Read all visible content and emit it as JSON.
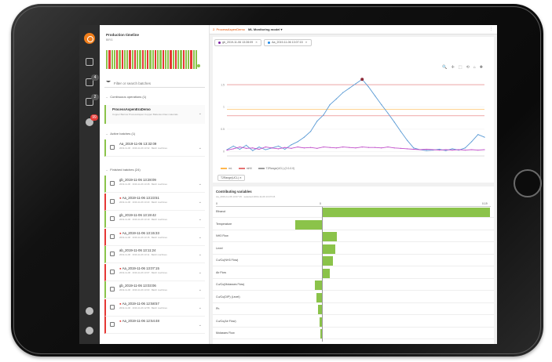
{
  "rail": {
    "badges": [
      "4",
      "2",
      "99"
    ]
  },
  "panel": {
    "title": "Production timeline",
    "subtitle": "BIRG",
    "timeline_colors": [
      "#8bc34a",
      "#e53935",
      "#8bc34a",
      "#8bc34a",
      "#e53935",
      "#8bc34a",
      "#e53935",
      "#8bc34a",
      "#8bc34a",
      "#e53935",
      "#8bc34a",
      "#e53935",
      "#8bc34a",
      "#8bc34a",
      "#e53935",
      "#8bc34a",
      "#e53935",
      "#8bc34a",
      "#8bc34a",
      "#e53935",
      "#8bc34a",
      "#8bc34a",
      "#e53935",
      "#8bc34a",
      "#8bc34a",
      "#e53935",
      "#8bc34a",
      "#e53935",
      "#8bc34a",
      "#8bc34a",
      "#e53935",
      "#8bc34a",
      "#8bc34a",
      "#e53935",
      "#8bc34a",
      "#8bc34a"
    ],
    "filter_placeholder": "Filter or search batches",
    "continuous_header": "Continuous operations (1)",
    "operation": {
      "title": "ProcessAspenEraDemo",
      "desc": "Copper Barrow ProcessAspen Copper Batteries Raw materials"
    },
    "active_header": "Active batches (1)",
    "finished_header": "Finished batches (24)"
  },
  "active_batches": [
    {
      "name": "Aa_2019-11-06 13:32:09",
      "meta": "2019-11-06 · 2019-11-06 13:32 · Batch machines",
      "status": "green",
      "warn": false
    }
  ],
  "finished_batches": [
    {
      "name": "gb_2019-11-06 13:28:09",
      "meta": "2019-11-06 · 2019-11-06 13:28 · Batch machines",
      "status": "green",
      "warn": false
    },
    {
      "name": "Aa_2019-11-06 13:23:51",
      "meta": "2019-11-06 · 2019-11-06 13:23 · Batch machines",
      "status": "red",
      "warn": true
    },
    {
      "name": "gb_2019-11-06 13:19:42",
      "meta": "2019-11-06 · 2019-11-06 13:19 · Batch machines",
      "status": "green",
      "warn": false
    },
    {
      "name": "Aa_2019-11-06 13:15:33",
      "meta": "2019-11-06 · 2019-11-06 13:15 · Batch machines",
      "status": "red",
      "warn": true
    },
    {
      "name": "ab_2019-11-06 13:11:24",
      "meta": "2019-11-06 · 2019-11-06 13:11 · Batch machines",
      "status": "green",
      "warn": false
    },
    {
      "name": "Aa_2019-11-06 13:07:15",
      "meta": "2019-11-06 · 2019-11-06 13:07 · Batch machines",
      "status": "red",
      "warn": true
    },
    {
      "name": "gb_2019-11-06 13:03:06",
      "meta": "2019-11-06 · 2019-11-06 13:03 · Batch machines",
      "status": "green",
      "warn": false
    },
    {
      "name": "Aa_2019-11-06 12:58:57",
      "meta": "2019-11-06 · 2019-11-06 12:58 · Batch machines",
      "status": "red",
      "warn": true
    },
    {
      "name": "Aa_2019-11-06 12:54:48",
      "meta": "",
      "status": "red",
      "warn": true
    }
  ],
  "main": {
    "breadcrumb_1": "2. ProcessAspenDemo",
    "breadcrumb_2": "ML Monitoring model ▾",
    "kebab": "⋮"
  },
  "chips": [
    {
      "label": "gb_2019-11-06 13:28:09",
      "color": "#7b1fa2"
    },
    {
      "label": "Aa_2019-11-06 13:07:15",
      "color": "#1e88e5"
    }
  ],
  "tool_icons": [
    "🔍",
    "✛",
    "⬚",
    "⟲",
    "⌂",
    "✚"
  ],
  "chart_data": {
    "type": "line",
    "title": "",
    "xlabel": "",
    "ylabel": "",
    "ylim": [
      -0.1,
      1.8
    ],
    "yticks": [
      "0",
      "0.5",
      "1",
      "1.5"
    ],
    "x": [
      0,
      1,
      2,
      3,
      4,
      5,
      6,
      7,
      8,
      9,
      10,
      11,
      12,
      13,
      14,
      15,
      16,
      17,
      18,
      19,
      20,
      21,
      22,
      23,
      24,
      25,
      26,
      27,
      28,
      29,
      30,
      31,
      32,
      33,
      34,
      35,
      36,
      37,
      38,
      39,
      40
    ],
    "series": [
      {
        "name": "",
        "color": "#5b9bd5",
        "values": [
          0.04,
          0.12,
          0.05,
          0.14,
          0.02,
          0.1,
          0.04,
          0.08,
          0.12,
          0.05,
          0.15,
          0.22,
          0.32,
          0.45,
          0.68,
          0.82,
          1.05,
          1.18,
          1.32,
          1.42,
          1.52,
          1.62,
          1.45,
          1.25,
          1.05,
          0.86,
          0.66,
          0.45,
          0.25,
          0.08,
          0.04,
          0.02,
          0.03,
          0.05,
          0.02,
          0.06,
          0.03,
          0.08,
          0.22,
          0.38,
          0.32
        ]
      },
      {
        "name": "",
        "color": "#c04ec9",
        "values": [
          0.03,
          0.06,
          0.1,
          0.07,
          0.08,
          0.05,
          0.1,
          0.08,
          0.06,
          0.09,
          0.07,
          0.1,
          0.08,
          0.09,
          0.07,
          0.1,
          0.09,
          0.08,
          0.1,
          0.09,
          0.08,
          0.1,
          0.09,
          0.09,
          0.08,
          0.1,
          0.08,
          0.07,
          0.06,
          0.05,
          0.04,
          0.05,
          0.04,
          0.03,
          0.04,
          0.03,
          0.04,
          0.03,
          0.04,
          0.03,
          0.04
        ]
      }
    ],
    "limits": [
      {
        "color": "#e57373",
        "value": 1.5
      },
      {
        "color": "#ffb74d",
        "value": 0.95
      },
      {
        "color": "#e57373",
        "value": 0.8
      }
    ],
    "legend": [
      "mL",
      "mHil",
      "T2Range(UCL) (2.0-0.0)"
    ],
    "tag": "T2Range(UCL) ✕"
  },
  "contrib": {
    "title": "Contributing variables",
    "subtitle": "Aa_2019-11-06 13:07:15 · selected 2019-11-06 13:07:15",
    "axis_left": "0",
    "axis_mid": "0",
    "axis_right": "0.19",
    "variables": [
      {
        "name": "Ethanol",
        "value": 0.19
      },
      {
        "name": "Temperature",
        "value": -0.03
      },
      {
        "name": "NH3 Flow",
        "value": 0.017
      },
      {
        "name": "Level",
        "value": 0.015
      },
      {
        "name": "Cu/Cu(NH3 Flow)",
        "value": 0.012
      },
      {
        "name": "Air Flow",
        "value": 0.009
      },
      {
        "name": "Cu/Cu(Molasses Flow)",
        "value": -0.008
      },
      {
        "name": "Cu/Cu(DIP) (Level)",
        "value": -0.006
      },
      {
        "name": "Ph",
        "value": -0.004
      },
      {
        "name": "Cu/Cu(Air Flow)",
        "value": -0.003
      },
      {
        "name": "Molasses Flow",
        "value": -0.002
      }
    ]
  }
}
